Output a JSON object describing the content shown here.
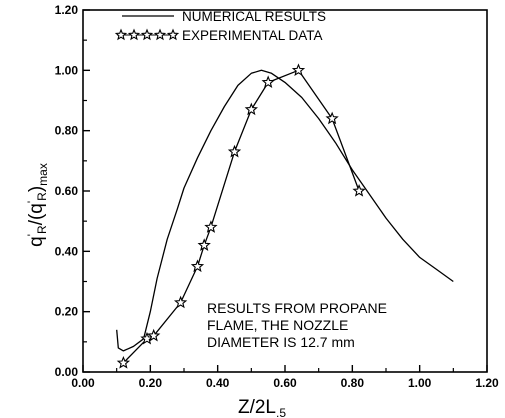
{
  "chart_data": {
    "type": "line",
    "xlabel_main": "Z/2L",
    "xlabel_sub": ".5",
    "ylabel_q": "q",
    "ylabel_prime_r": "'",
    "ylabel_sub_r": "R",
    "ylabel_slash": "/(q",
    "ylabel_prime_r2": "'",
    "ylabel_sub_r2": "R",
    "ylabel_close": ")",
    "ylabel_sub_max": "max",
    "xlim": [
      0.0,
      1.2
    ],
    "ylim": [
      0.0,
      1.2
    ],
    "xticks": [
      "0.00",
      "0.20",
      "0.40",
      "0.60",
      "0.80",
      "1.00",
      "1.20"
    ],
    "yticks": [
      "0.00",
      "0.20",
      "0.40",
      "0.60",
      "0.80",
      "1.00",
      "1.20"
    ],
    "grid": false,
    "legend_position": "top-left",
    "series": [
      {
        "name": "NUMERICAL RESULTS",
        "style": "solid line",
        "x": [
          0.1,
          0.105,
          0.12,
          0.15,
          0.18,
          0.2,
          0.22,
          0.25,
          0.28,
          0.3,
          0.34,
          0.38,
          0.42,
          0.46,
          0.5,
          0.53,
          0.56,
          0.6,
          0.65,
          0.7,
          0.75,
          0.8,
          0.85,
          0.9,
          0.95,
          1.0,
          1.05,
          1.1
        ],
        "y": [
          0.14,
          0.08,
          0.07,
          0.085,
          0.11,
          0.2,
          0.31,
          0.44,
          0.54,
          0.61,
          0.71,
          0.8,
          0.88,
          0.95,
          0.99,
          1.0,
          0.99,
          0.96,
          0.91,
          0.84,
          0.76,
          0.67,
          0.59,
          0.51,
          0.44,
          0.38,
          0.34,
          0.3
        ]
      },
      {
        "name": "EXPERIMENTAL DATA",
        "style": "line with star markers",
        "x": [
          0.12,
          0.19,
          0.21,
          0.29,
          0.34,
          0.36,
          0.38,
          0.45,
          0.5,
          0.55,
          0.64,
          0.74,
          0.82
        ],
        "y": [
          0.03,
          0.11,
          0.12,
          0.23,
          0.35,
          0.42,
          0.48,
          0.73,
          0.87,
          0.96,
          1.0,
          0.84,
          0.6
        ]
      }
    ],
    "annotation": [
      "RESULTS FROM PROPANE",
      "FLAME, THE NOZZLE",
      "DIAMETER IS 12.7 mm"
    ]
  }
}
